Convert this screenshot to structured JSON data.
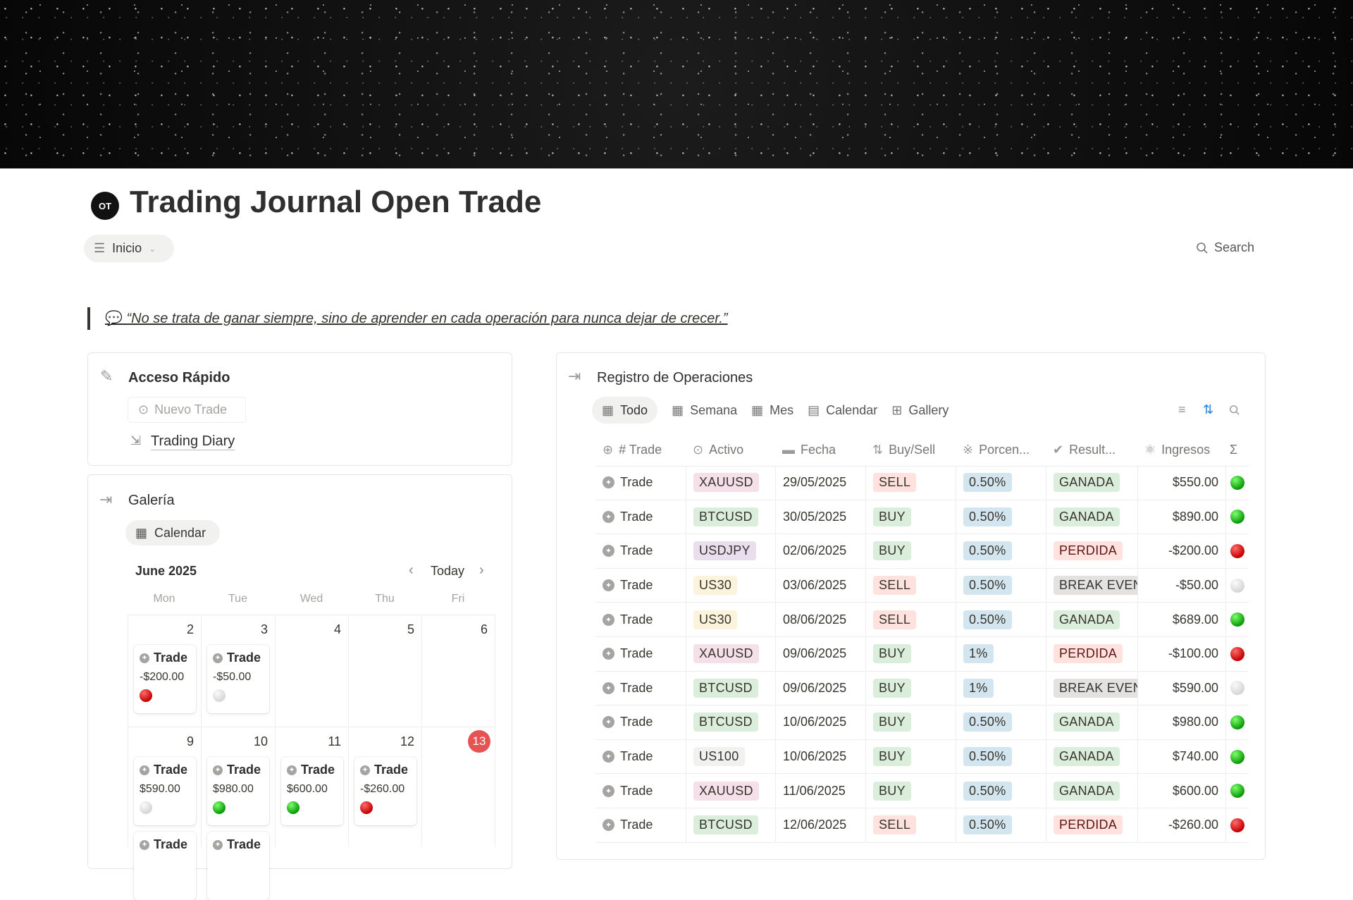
{
  "page": {
    "title": "Trading Journal Open Trade",
    "icon_text": "OT",
    "nav_label": "Inicio",
    "search_label": "Search",
    "quote": "“No se trata de ganar siempre, sino de aprender en cada operación para nunca dejar de crecer.”"
  },
  "quick_access": {
    "title": "Acceso Rápido",
    "new_trade": "Nuevo Trade",
    "diary_link": "Trading Diary"
  },
  "gallery": {
    "title": "Galería",
    "view_label": "Calendar",
    "month": "June 2025",
    "today_label": "Today",
    "weekdays": [
      "Mon",
      "Tue",
      "Wed",
      "Thu",
      "Fri"
    ],
    "weeks": [
      {
        "days": [
          "2",
          "3",
          "4",
          "5",
          "6"
        ],
        "entries": [
          {
            "col": 0,
            "title": "Trade",
            "value": "-$200.00",
            "status": "red"
          },
          {
            "col": 1,
            "title": "Trade",
            "value": "-$50.00",
            "status": "gray"
          }
        ]
      },
      {
        "days": [
          "9",
          "10",
          "11",
          "12",
          "13"
        ],
        "today": "13",
        "entries": [
          {
            "col": 0,
            "title": "Trade",
            "value": "$590.00",
            "status": "gray"
          },
          {
            "col": 1,
            "title": "Trade",
            "value": "$980.00",
            "status": "green"
          },
          {
            "col": 2,
            "title": "Trade",
            "value": "$600.00",
            "status": "green"
          },
          {
            "col": 3,
            "title": "Trade",
            "value": "-$260.00",
            "status": "red"
          }
        ],
        "more_entries": [
          {
            "col": 0,
            "title": "Trade"
          },
          {
            "col": 1,
            "title": "Trade"
          }
        ]
      }
    ]
  },
  "operations": {
    "title": "Registro de Operaciones",
    "tabs": [
      {
        "label": "Todo",
        "active": true
      },
      {
        "label": "Semana"
      },
      {
        "label": "Mes"
      },
      {
        "label": "Calendar"
      },
      {
        "label": "Gallery"
      }
    ],
    "columns": [
      "# Trade",
      "Activo",
      "Fecha",
      "Buy/Sell",
      "Porcen...",
      "Result...",
      "Ingresos",
      "Σ"
    ],
    "rows": [
      {
        "name": "Trade",
        "asset": "XAUUSD",
        "date": "29/05/2025",
        "side": "SELL",
        "pct": "0.50%",
        "result": "GANADA",
        "income": "$550.00",
        "status": "green"
      },
      {
        "name": "Trade",
        "asset": "BTCUSD",
        "date": "30/05/2025",
        "side": "BUY",
        "pct": "0.50%",
        "result": "GANADA",
        "income": "$890.00",
        "status": "green"
      },
      {
        "name": "Trade",
        "asset": "USDJPY",
        "date": "02/06/2025",
        "side": "BUY",
        "pct": "0.50%",
        "result": "PERDIDA",
        "income": "-$200.00",
        "status": "red"
      },
      {
        "name": "Trade",
        "asset": "US30",
        "date": "03/06/2025",
        "side": "SELL",
        "pct": "0.50%",
        "result": "BREAK EVEN",
        "income": "-$50.00",
        "status": "gray"
      },
      {
        "name": "Trade",
        "asset": "US30",
        "date": "08/06/2025",
        "side": "SELL",
        "pct": "0.50%",
        "result": "GANADA",
        "income": "$689.00",
        "status": "green"
      },
      {
        "name": "Trade",
        "asset": "XAUUSD",
        "date": "09/06/2025",
        "side": "BUY",
        "pct": "1%",
        "result": "PERDIDA",
        "income": "-$100.00",
        "status": "red"
      },
      {
        "name": "Trade",
        "asset": "BTCUSD",
        "date": "09/06/2025",
        "side": "BUY",
        "pct": "1%",
        "result": "BREAK EVEN",
        "income": "$590.00",
        "status": "gray"
      },
      {
        "name": "Trade",
        "asset": "BTCUSD",
        "date": "10/06/2025",
        "side": "BUY",
        "pct": "0.50%",
        "result": "GANADA",
        "income": "$980.00",
        "status": "green"
      },
      {
        "name": "Trade",
        "asset": "US100",
        "date": "10/06/2025",
        "side": "BUY",
        "pct": "0.50%",
        "result": "GANADA",
        "income": "$740.00",
        "status": "green"
      },
      {
        "name": "Trade",
        "asset": "XAUUSD",
        "date": "11/06/2025",
        "side": "BUY",
        "pct": "0.50%",
        "result": "GANADA",
        "income": "$600.00",
        "status": "green"
      },
      {
        "name": "Trade",
        "asset": "BTCUSD",
        "date": "12/06/2025",
        "side": "SELL",
        "pct": "0.50%",
        "result": "PERDIDA",
        "income": "-$260.00",
        "status": "red"
      }
    ]
  },
  "colors": {
    "assets": {
      "XAUUSD": "#f5e0e9",
      "BTCUSD": "#dbeddb",
      "USDJPY": "#e8deee",
      "US30": "#fbf3db",
      "US100": "#f1f1ef"
    },
    "sides": {
      "SELL": "#ffe2dd",
      "BUY": "#dbeddb"
    },
    "pct": "#d3e5ef",
    "results": {
      "GANADA": "#dbeddb",
      "PERDIDA": "#ffe2dd",
      "BREAK EVEN": "#e3e2e0"
    },
    "status": {
      "green": "radial-gradient(circle at 35% 30%,#7dff6a,#0a9a0a 70%)",
      "red": "radial-gradient(circle at 35% 30%,#ff6b6b,#c40000 70%)",
      "gray": "radial-gradient(circle at 35% 30%,#fafafa,#d6d6d6 70%)"
    },
    "today": "#e55353",
    "sort_accent": "#2383e2"
  }
}
